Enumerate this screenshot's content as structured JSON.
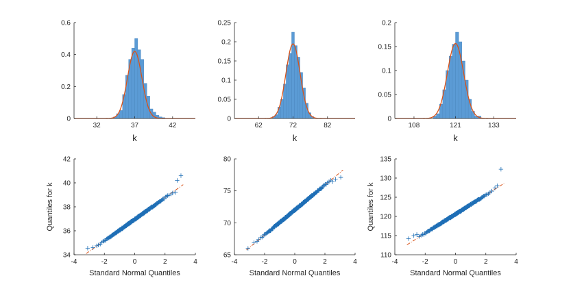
{
  "colors": {
    "bar": "#5b9bd5",
    "bar_stroke": "#4a86bd",
    "fit_line": "#d95319",
    "marker": "#1f6fb6",
    "ref_line": "#d95319",
    "axis": "#262626"
  },
  "chart_data": [
    {
      "type": "bar",
      "subtype": "histogram-with-normal-fit",
      "xlabel": "k",
      "ylabel": "",
      "xlim": [
        29,
        45
      ],
      "ylim": [
        0,
        0.6
      ],
      "xticks": [
        32,
        37,
        42
      ],
      "xtick_labels": [
        "32",
        "37",
        "42"
      ],
      "yticks": [
        0,
        0.2,
        0.4,
        0.6
      ],
      "ytick_labels": [
        "0",
        "0.2",
        "0.4",
        "0.6"
      ],
      "bin_width": 0.4,
      "bins": [
        [
          34.2,
          0.01
        ],
        [
          34.6,
          0.03
        ],
        [
          35.0,
          0.05
        ],
        [
          35.4,
          0.15
        ],
        [
          35.8,
          0.27
        ],
        [
          36.2,
          0.37
        ],
        [
          36.6,
          0.44
        ],
        [
          37.0,
          0.5
        ],
        [
          37.4,
          0.43
        ],
        [
          37.8,
          0.37
        ],
        [
          38.2,
          0.22
        ],
        [
          38.6,
          0.14
        ],
        [
          39.0,
          0.06
        ],
        [
          39.4,
          0.04
        ],
        [
          39.8,
          0.02
        ],
        [
          40.2,
          0.01
        ],
        [
          40.6,
          0.005
        ]
      ],
      "fit": {
        "mean": 37.0,
        "sd": 0.95
      }
    },
    {
      "type": "bar",
      "subtype": "histogram-with-normal-fit",
      "xlabel": "k",
      "ylabel": "",
      "xlim": [
        55,
        90
      ],
      "ylim": [
        0,
        0.25
      ],
      "xticks": [
        62,
        72,
        82
      ],
      "xtick_labels": [
        "62",
        "72",
        "82"
      ],
      "yticks": [
        0,
        0.05,
        0.1,
        0.15,
        0.2,
        0.25
      ],
      "ytick_labels": [
        "0",
        "0.05",
        "0.1",
        "0.15",
        "0.2",
        "0.25"
      ],
      "bin_width": 0.8,
      "bins": [
        [
          66.0,
          0.005
        ],
        [
          66.8,
          0.01
        ],
        [
          67.6,
          0.03
        ],
        [
          68.4,
          0.05
        ],
        [
          69.2,
          0.09
        ],
        [
          70.0,
          0.14
        ],
        [
          70.8,
          0.17
        ],
        [
          71.6,
          0.225
        ],
        [
          72.4,
          0.19
        ],
        [
          73.2,
          0.16
        ],
        [
          74.0,
          0.12
        ],
        [
          74.8,
          0.08
        ],
        [
          75.6,
          0.04
        ],
        [
          76.4,
          0.015
        ],
        [
          77.2,
          0.005
        ]
      ],
      "fit": {
        "mean": 72.0,
        "sd": 2.05
      }
    },
    {
      "type": "bar",
      "subtype": "histogram-with-normal-fit",
      "xlabel": "k",
      "ylabel": "",
      "xlim": [
        102,
        140
      ],
      "ylim": [
        0,
        0.2
      ],
      "xticks": [
        108,
        121,
        133
      ],
      "xtick_labels": [
        "108",
        "121",
        "133"
      ],
      "yticks": [
        0,
        0.05,
        0.1,
        0.15,
        0.2
      ],
      "ytick_labels": [
        "0",
        "0.05",
        "0.1",
        "0.15",
        "0.2"
      ],
      "bin_width": 1.0,
      "bins": [
        [
          114.0,
          0.005
        ],
        [
          115.0,
          0.01
        ],
        [
          116.0,
          0.03
        ],
        [
          117.0,
          0.06
        ],
        [
          118.0,
          0.1
        ],
        [
          119.0,
          0.13
        ],
        [
          120.0,
          0.155
        ],
        [
          121.0,
          0.18
        ],
        [
          122.0,
          0.16
        ],
        [
          123.0,
          0.12
        ],
        [
          124.0,
          0.08
        ],
        [
          125.0,
          0.04
        ],
        [
          126.0,
          0.015
        ],
        [
          127.0,
          0.005
        ],
        [
          128.0,
          0.005
        ]
      ],
      "fit": {
        "mean": 121.0,
        "sd": 2.55
      }
    },
    {
      "type": "scatter",
      "subtype": "qq-plot",
      "xlabel": "Standard Normal Quantiles",
      "ylabel": "Quantiles for k",
      "xlim": [
        -4,
        4
      ],
      "ylim": [
        34,
        42
      ],
      "xticks": [
        -4,
        -2,
        0,
        2,
        4
      ],
      "xtick_labels": [
        "-4",
        "-2",
        "0",
        "2",
        "4"
      ],
      "yticks": [
        34,
        36,
        38,
        40,
        42
      ],
      "ytick_labels": [
        "34",
        "36",
        "38",
        "40",
        "42"
      ],
      "fit": {
        "mean": 36.95,
        "sd": 0.9
      },
      "ref_line": [
        [
          -3.2,
          34.1
        ],
        [
          3.2,
          39.85
        ]
      ],
      "outliers": [
        [
          -3.1,
          34.55
        ],
        [
          -2.75,
          34.6
        ],
        [
          -2.5,
          34.75
        ],
        [
          2.5,
          39.15
        ],
        [
          2.7,
          39.2
        ],
        [
          2.8,
          40.2
        ],
        [
          3.05,
          40.6
        ]
      ]
    },
    {
      "type": "scatter",
      "subtype": "qq-plot",
      "xlabel": "Standard Normal Quantiles",
      "ylabel": "",
      "xlim": [
        -4,
        4
      ],
      "ylim": [
        65,
        80
      ],
      "xticks": [
        -4,
        -2,
        0,
        2,
        4
      ],
      "xtick_labels": [
        "-4",
        "-2",
        "0",
        "2",
        "4"
      ],
      "yticks": [
        65,
        70,
        75,
        80
      ],
      "ytick_labels": [
        "65",
        "70",
        "75",
        "80"
      ],
      "fit": {
        "mean": 72.0,
        "sd": 1.95
      },
      "ref_line": [
        [
          -3.2,
          65.75
        ],
        [
          3.2,
          78.25
        ]
      ],
      "outliers": [
        [
          -3.1,
          66.0
        ],
        [
          -2.7,
          66.9
        ],
        [
          -2.5,
          67.1
        ],
        [
          2.5,
          76.4
        ],
        [
          2.7,
          76.8
        ],
        [
          3.05,
          77.1
        ]
      ]
    },
    {
      "type": "scatter",
      "subtype": "qq-plot",
      "xlabel": "Standard Normal Quantiles",
      "ylabel": "Quantiles for k",
      "xlim": [
        -4,
        4
      ],
      "ylim": [
        110,
        135
      ],
      "xticks": [
        -4,
        -2,
        0,
        2,
        4
      ],
      "xtick_labels": [
        "-4",
        "-2",
        "0",
        "2",
        "4"
      ],
      "yticks": [
        110,
        115,
        120,
        125,
        130,
        135
      ],
      "ytick_labels": [
        "110",
        "115",
        "120",
        "125",
        "130",
        "135"
      ],
      "fit": {
        "mean": 120.6,
        "sd": 2.5
      },
      "ref_line": [
        [
          -3.2,
          112.6
        ],
        [
          3.2,
          128.6
        ]
      ],
      "outliers": [
        [
          -3.1,
          114.2
        ],
        [
          -2.75,
          115.0
        ],
        [
          -2.55,
          115.3
        ],
        [
          2.4,
          126.6
        ],
        [
          2.6,
          127.4
        ],
        [
          2.75,
          128.0
        ],
        [
          3.0,
          132.3
        ]
      ]
    }
  ]
}
